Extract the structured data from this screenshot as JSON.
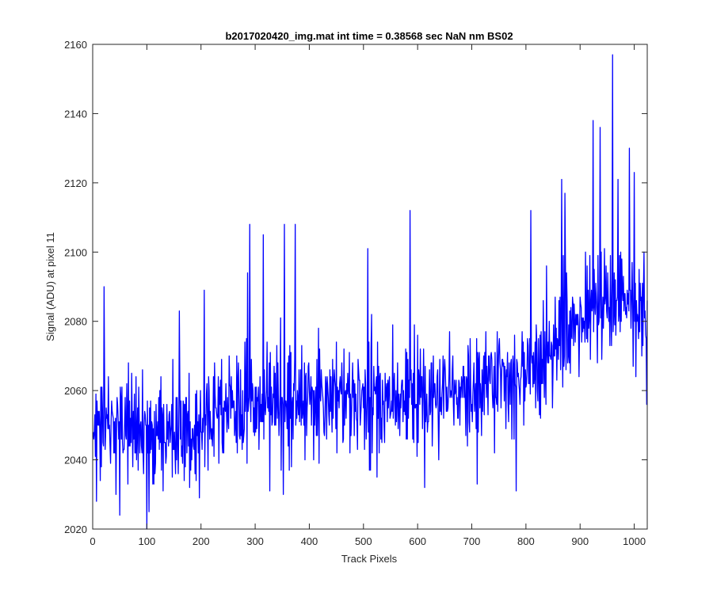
{
  "chart_data": {
    "type": "line",
    "title": "b2017020420_img.mat int time = 0.38568 sec  NaN nm BS02",
    "xlabel": "Track Pixels",
    "ylabel": "Signal (ADU) at pixel 11",
    "xlim": [
      0,
      1024
    ],
    "ylim": [
      2020,
      2160
    ],
    "xticks": [
      0,
      100,
      200,
      300,
      400,
      500,
      600,
      700,
      800,
      900,
      1000
    ],
    "yticks": [
      2020,
      2040,
      2060,
      2080,
      2100,
      2120,
      2140,
      2160
    ],
    "grid": false,
    "legend": "none",
    "series": [
      {
        "color": "#0000ff",
        "x_start": 1,
        "x_step": 1,
        "values_note_excluded": true,
        "values": []
      }
    ],
    "trend": {
      "anchors": [
        [
          1,
          2050
        ],
        [
          150,
          2049
        ],
        [
          250,
          2055
        ],
        [
          400,
          2058
        ],
        [
          550,
          2057
        ],
        [
          700,
          2060
        ],
        [
          800,
          2064
        ],
        [
          900,
          2080
        ],
        [
          960,
          2086
        ],
        [
          1024,
          2082
        ]
      ],
      "noise_sd": 10,
      "seed": 20170204
    },
    "extremes": [
      [
        9,
        2050
      ],
      [
        14,
        2034
      ],
      [
        21,
        2090
      ],
      [
        50,
        2024
      ],
      [
        100,
        2020
      ],
      [
        104,
        2025
      ],
      [
        160,
        2083
      ],
      [
        197,
        2029
      ],
      [
        206,
        2089
      ],
      [
        286,
        2094
      ],
      [
        290,
        2108
      ],
      [
        315,
        2105
      ],
      [
        352,
        2030
      ],
      [
        354,
        2108
      ],
      [
        374,
        2108
      ],
      [
        508,
        2101
      ],
      [
        586,
        2112
      ],
      [
        710,
        2033
      ],
      [
        782,
        2031
      ],
      [
        809,
        2112
      ],
      [
        838,
        2096
      ],
      [
        866,
        2121
      ],
      [
        872,
        2117
      ],
      [
        924,
        2138
      ],
      [
        937,
        2136
      ],
      [
        960,
        2157
      ],
      [
        970,
        2121
      ],
      [
        991,
        2130
      ],
      [
        1000,
        2123
      ],
      [
        1018,
        2100
      ],
      [
        1023,
        2056
      ]
    ]
  }
}
